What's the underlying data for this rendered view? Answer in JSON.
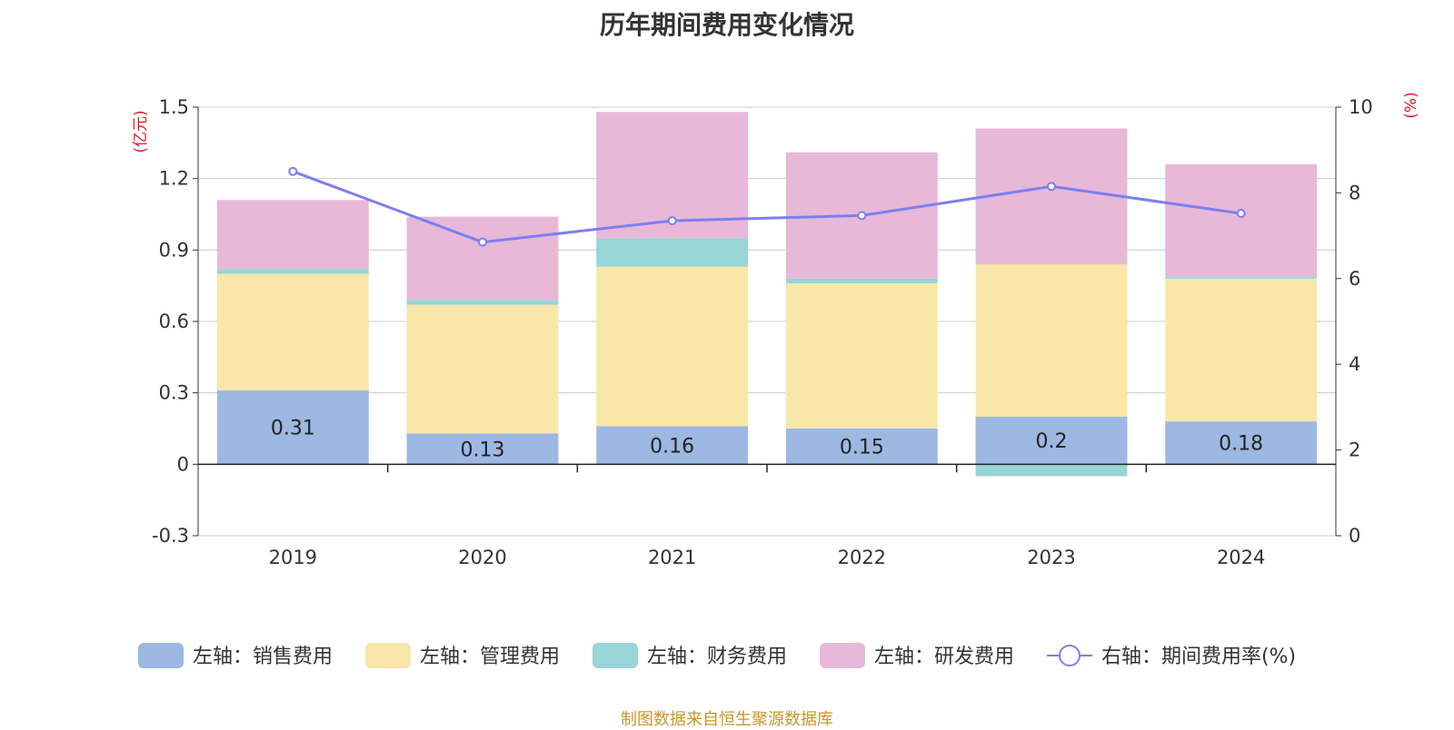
{
  "title": "历年期间费用变化情况",
  "source_note": "制图数据来自恒生聚源数据库",
  "colors": {
    "sales": "#9db8e2",
    "admin": "#f8e7a8",
    "finance": "#97d5d6",
    "rnd": "#e8b8d8",
    "rate": "#7b7ff0",
    "axis_unit": "#e0181b",
    "grid": "#cccccc",
    "text": "#333333"
  },
  "chart_data": {
    "type": "bar",
    "stacked": true,
    "title": "历年期间费用变化情况",
    "categories": [
      "2019",
      "2020",
      "2021",
      "2022",
      "2023",
      "2024"
    ],
    "left_axis": {
      "unit_label": "(亿元)",
      "ylim": [
        -0.3,
        1.5
      ],
      "ticks": [
        "-0.3",
        "0",
        "0.3",
        "0.6",
        "0.9",
        "1.2",
        "1.5"
      ]
    },
    "right_axis": {
      "unit_label": "(%)",
      "ylim": [
        0,
        10
      ],
      "ticks": [
        "0",
        "2",
        "4",
        "6",
        "8",
        "10"
      ]
    },
    "series": [
      {
        "name": "左轴：销售费用",
        "key": "sales",
        "axis": "left",
        "values": [
          0.31,
          0.13,
          0.16,
          0.15,
          0.2,
          0.18
        ],
        "data_labels": [
          "0.31",
          "0.13",
          "0.16",
          "0.15",
          "0.2",
          "0.18"
        ]
      },
      {
        "name": "左轴：管理费用",
        "key": "admin",
        "axis": "left",
        "values": [
          0.49,
          0.54,
          0.67,
          0.61,
          0.64,
          0.6
        ]
      },
      {
        "name": "左轴：财务费用",
        "key": "finance",
        "axis": "left",
        "values": [
          0.02,
          0.02,
          0.12,
          0.02,
          -0.05,
          0.01
        ]
      },
      {
        "name": "左轴：研发费用",
        "key": "rnd",
        "axis": "left",
        "values": [
          0.29,
          0.35,
          0.53,
          0.53,
          0.57,
          0.47
        ]
      },
      {
        "name": "右轴：期间费用率(%)",
        "key": "rate",
        "axis": "right",
        "type": "line",
        "values": [
          8.5,
          6.85,
          7.35,
          7.47,
          8.15,
          7.52
        ]
      }
    ],
    "grid": true,
    "legend_position": "bottom"
  }
}
